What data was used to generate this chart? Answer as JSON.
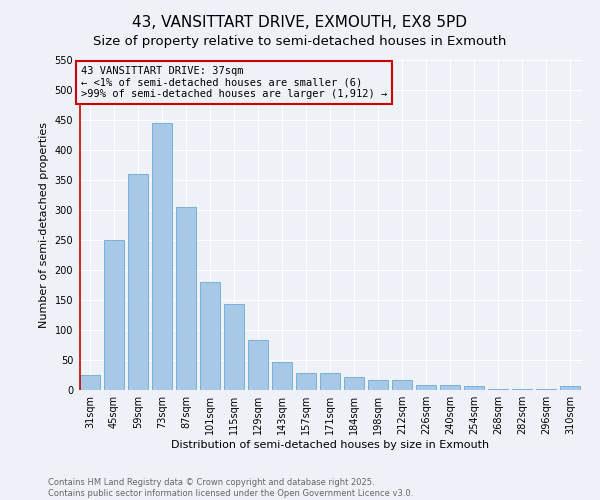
{
  "title": "43, VANSITTART DRIVE, EXMOUTH, EX8 5PD",
  "subtitle": "Size of property relative to semi-detached houses in Exmouth",
  "xlabel": "Distribution of semi-detached houses by size in Exmouth",
  "ylabel": "Number of semi-detached properties",
  "categories": [
    "31sqm",
    "45sqm",
    "59sqm",
    "73sqm",
    "87sqm",
    "101sqm",
    "115sqm",
    "129sqm",
    "143sqm",
    "157sqm",
    "171sqm",
    "184sqm",
    "198sqm",
    "212sqm",
    "226sqm",
    "240sqm",
    "254sqm",
    "268sqm",
    "282sqm",
    "296sqm",
    "310sqm"
  ],
  "values": [
    25,
    250,
    360,
    445,
    305,
    180,
    143,
    84,
    47,
    29,
    29,
    21,
    16,
    17,
    9,
    8,
    7,
    2,
    2,
    1,
    6
  ],
  "bar_color": "#a8c8e8",
  "bar_edge_color": "#6aaad4",
  "annotation_line_color": "#cc0000",
  "annotation_box_edgecolor": "#cc0000",
  "annotation_text_line1": "43 VANSITTART DRIVE: 37sqm",
  "annotation_text_line2": "← <1% of semi-detached houses are smaller (6)",
  "annotation_text_line3": ">99% of semi-detached houses are larger (1,912) →",
  "ylim": [
    0,
    550
  ],
  "yticks": [
    0,
    50,
    100,
    150,
    200,
    250,
    300,
    350,
    400,
    450,
    500,
    550
  ],
  "footnote1": "Contains HM Land Registry data © Crown copyright and database right 2025.",
  "footnote2": "Contains public sector information licensed under the Open Government Licence v3.0.",
  "background_color": "#eef2f8",
  "grid_color": "#ffffff",
  "title_fontsize": 11,
  "subtitle_fontsize": 9.5,
  "axis_label_fontsize": 8,
  "tick_fontsize": 7,
  "annotation_fontsize": 7.5,
  "footnote_fontsize": 6
}
